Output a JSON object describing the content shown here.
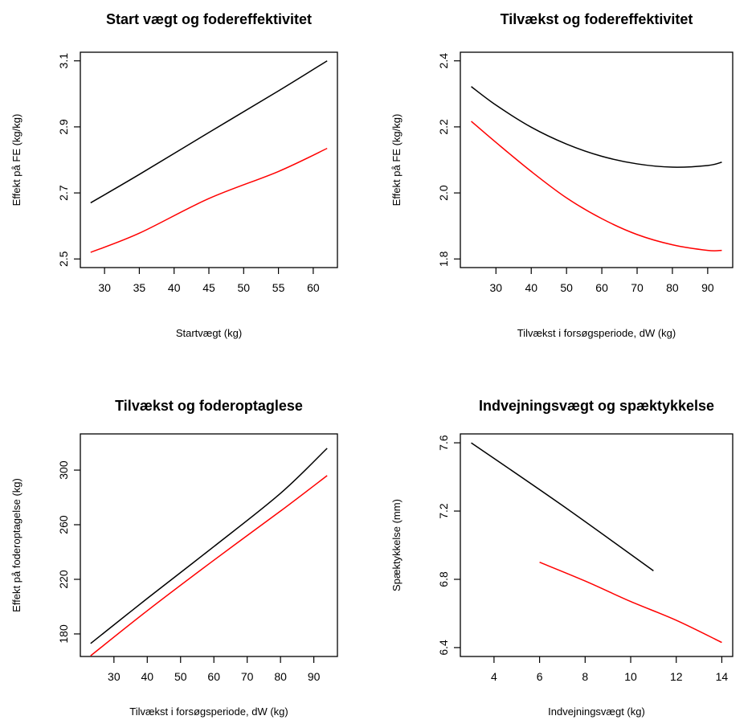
{
  "chart_data": [
    {
      "type": "line",
      "title": "Start vægt og fodereffektivitet",
      "xlabel": "Startvægt (kg)",
      "ylabel": "Effekt på FE (kg/kg)",
      "xlim": [
        28,
        62
      ],
      "ylim": [
        2.5,
        3.1
      ],
      "xticks": [
        30,
        35,
        40,
        45,
        50,
        55,
        60
      ],
      "yticks": [
        2.5,
        2.7,
        2.9,
        3.1
      ],
      "series": [
        {
          "color": "#000000",
          "x": [
            28,
            35,
            45,
            55,
            62
          ],
          "y": [
            2.67,
            2.756,
            2.883,
            3.009,
            3.1
          ]
        },
        {
          "color": "#ff0000",
          "x": [
            28,
            35,
            45,
            55,
            62
          ],
          "y": [
            2.52,
            2.578,
            2.683,
            2.765,
            2.835
          ]
        }
      ]
    },
    {
      "type": "line",
      "title": "Tilvækst og fodereffektivitet",
      "xlabel": "Tilvækst i forsøgsperiode, dW (kg)",
      "ylabel": "Effekt på FE (kg/kg)",
      "xlim": [
        23,
        94
      ],
      "ylim": [
        1.8,
        2.4
      ],
      "xticks": [
        30,
        40,
        50,
        60,
        70,
        80,
        90
      ],
      "yticks": [
        1.8,
        2.0,
        2.2,
        2.4
      ],
      "series": [
        {
          "color": "#000000",
          "x": [
            23,
            30,
            40,
            50,
            60,
            70,
            80,
            90,
            94
          ],
          "y": [
            2.322,
            2.266,
            2.199,
            2.148,
            2.111,
            2.088,
            2.078,
            2.083,
            2.093
          ]
        },
        {
          "color": "#ff0000",
          "x": [
            23,
            30,
            40,
            50,
            60,
            70,
            80,
            90,
            94
          ],
          "y": [
            2.217,
            2.153,
            2.065,
            1.985,
            1.922,
            1.874,
            1.843,
            1.826,
            1.826
          ]
        }
      ]
    },
    {
      "type": "line",
      "title": "Tilvækst og foderoptaglese",
      "xlabel": "Tilvækst i forsøgsperiode, dW (kg)",
      "ylabel": "Effekt på foderoptagelse (kg)",
      "xlim": [
        23,
        94
      ],
      "ylim": [
        170,
        320
      ],
      "xticks": [
        30,
        40,
        50,
        60,
        70,
        80,
        90
      ],
      "yticks": [
        180,
        220,
        260,
        300
      ],
      "series": [
        {
          "color": "#000000",
          "x": [
            23,
            40,
            60,
            80,
            94
          ],
          "y": [
            173,
            206,
            244,
            283,
            316
          ]
        },
        {
          "color": "#ff0000",
          "x": [
            23,
            40,
            60,
            80,
            94
          ],
          "y": [
            164,
            197,
            234,
            270,
            296
          ]
        }
      ]
    },
    {
      "type": "line",
      "title": "Indvejningsvægt og spæktykkelse",
      "xlabel": "Indvejningsvægt (kg)",
      "ylabel": "Spæktykkelse (mm)",
      "xlim": [
        3,
        14
      ],
      "ylim": [
        6.4,
        7.6
      ],
      "xticks": [
        4,
        6,
        8,
        10,
        12,
        14
      ],
      "yticks": [
        6.4,
        6.8,
        7.2,
        7.6
      ],
      "series": [
        {
          "color": "#000000",
          "x": [
            3,
            7,
            11
          ],
          "y": [
            7.6,
            7.233,
            6.85
          ]
        },
        {
          "color": "#ff0000",
          "x": [
            6,
            8,
            10,
            12,
            14
          ],
          "y": [
            6.9,
            6.79,
            6.67,
            6.56,
            6.43
          ]
        }
      ]
    }
  ]
}
